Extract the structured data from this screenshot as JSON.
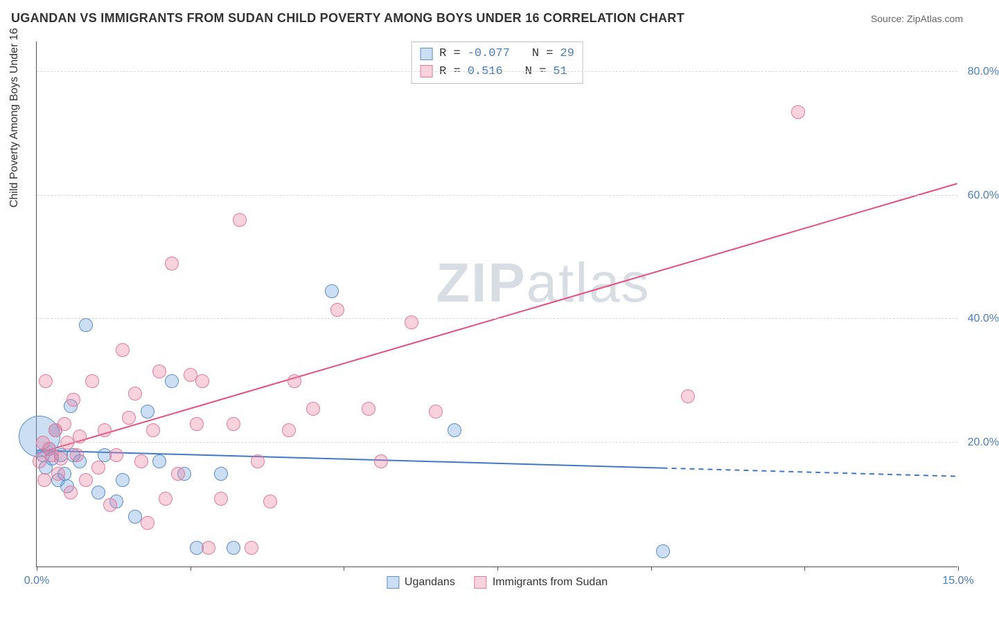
{
  "title": "UGANDAN VS IMMIGRANTS FROM SUDAN CHILD POVERTY AMONG BOYS UNDER 16 CORRELATION CHART",
  "source": "Source: ZipAtlas.com",
  "y_axis_label": "Child Poverty Among Boys Under 16",
  "watermark": {
    "bold": "ZIP",
    "light": "atlas"
  },
  "chart": {
    "type": "scatter",
    "background_color": "#ffffff",
    "grid_color": "#d9d9d9",
    "axis_color": "#555555",
    "x": {
      "min": 0,
      "max": 15,
      "ticks": [
        0,
        2.5,
        5.0,
        7.5,
        10.0,
        12.5,
        15.0
      ],
      "labels_shown": [
        "0.0%",
        "15.0%"
      ],
      "label_color": "#4a7ebb",
      "fontsize": 16
    },
    "y": {
      "min": 0,
      "max": 85,
      "ticks": [
        20,
        40,
        60,
        80
      ],
      "labels": [
        "20.0%",
        "40.0%",
        "60.0%",
        "80.0%"
      ],
      "label_color": "#4a7ebb",
      "fontsize": 16
    },
    "marker_radius_default": 10,
    "series": [
      {
        "id": "ugandans",
        "label": "Ugandans",
        "fill": "rgba(110,160,220,0.35)",
        "stroke": "#5a8fca",
        "R": -0.077,
        "N": 29,
        "trend": {
          "y_at_x0": 18.8,
          "y_at_x15": 14.6,
          "stroke": "#3f78c9",
          "width": 2,
          "solid_until_x": 10.2
        },
        "points": [
          {
            "x": 0.05,
            "y": 21,
            "r": 30
          },
          {
            "x": 0.1,
            "y": 18
          },
          {
            "x": 0.15,
            "y": 16
          },
          {
            "x": 0.2,
            "y": 19
          },
          {
            "x": 0.25,
            "y": 17.5
          },
          {
            "x": 0.3,
            "y": 22
          },
          {
            "x": 0.35,
            "y": 14
          },
          {
            "x": 0.4,
            "y": 18
          },
          {
            "x": 0.45,
            "y": 15
          },
          {
            "x": 0.5,
            "y": 13
          },
          {
            "x": 0.55,
            "y": 26
          },
          {
            "x": 0.6,
            "y": 18
          },
          {
            "x": 0.7,
            "y": 17
          },
          {
            "x": 0.8,
            "y": 39
          },
          {
            "x": 1.0,
            "y": 12
          },
          {
            "x": 1.1,
            "y": 18
          },
          {
            "x": 1.3,
            "y": 10.5
          },
          {
            "x": 1.4,
            "y": 14
          },
          {
            "x": 1.6,
            "y": 8
          },
          {
            "x": 1.8,
            "y": 25
          },
          {
            "x": 2.0,
            "y": 17
          },
          {
            "x": 2.2,
            "y": 30
          },
          {
            "x": 2.4,
            "y": 15
          },
          {
            "x": 2.6,
            "y": 3
          },
          {
            "x": 3.0,
            "y": 15
          },
          {
            "x": 3.2,
            "y": 3
          },
          {
            "x": 4.8,
            "y": 44.5
          },
          {
            "x": 6.8,
            "y": 22
          },
          {
            "x": 10.2,
            "y": 2.5
          }
        ]
      },
      {
        "id": "sudan",
        "label": "Immigrants from Sudan",
        "fill": "rgba(235,130,160,0.35)",
        "stroke": "#e47a9a",
        "R": 0.516,
        "N": 51,
        "trend": {
          "y_at_x0": 18.3,
          "y_at_x15": 62,
          "stroke": "#e74e7f",
          "width": 2,
          "solid_until_x": 15
        },
        "points": [
          {
            "x": 0.05,
            "y": 17
          },
          {
            "x": 0.1,
            "y": 20
          },
          {
            "x": 0.15,
            "y": 30
          },
          {
            "x": 0.2,
            "y": 19
          },
          {
            "x": 0.25,
            "y": 18
          },
          {
            "x": 0.3,
            "y": 22
          },
          {
            "x": 0.35,
            "y": 15
          },
          {
            "x": 0.4,
            "y": 17.5
          },
          {
            "x": 0.45,
            "y": 23
          },
          {
            "x": 0.5,
            "y": 20
          },
          {
            "x": 0.55,
            "y": 12
          },
          {
            "x": 0.6,
            "y": 27
          },
          {
            "x": 0.65,
            "y": 18
          },
          {
            "x": 0.7,
            "y": 21
          },
          {
            "x": 0.8,
            "y": 14
          },
          {
            "x": 0.9,
            "y": 30
          },
          {
            "x": 1.0,
            "y": 16
          },
          {
            "x": 1.1,
            "y": 22
          },
          {
            "x": 1.2,
            "y": 10
          },
          {
            "x": 1.3,
            "y": 18
          },
          {
            "x": 1.4,
            "y": 35
          },
          {
            "x": 1.5,
            "y": 24
          },
          {
            "x": 1.6,
            "y": 28
          },
          {
            "x": 1.7,
            "y": 17
          },
          {
            "x": 1.8,
            "y": 7
          },
          {
            "x": 1.9,
            "y": 22
          },
          {
            "x": 2.0,
            "y": 31.5
          },
          {
            "x": 2.1,
            "y": 11
          },
          {
            "x": 2.2,
            "y": 49
          },
          {
            "x": 2.3,
            "y": 15
          },
          {
            "x": 2.5,
            "y": 31
          },
          {
            "x": 2.6,
            "y": 23
          },
          {
            "x": 2.7,
            "y": 30
          },
          {
            "x": 2.8,
            "y": 3
          },
          {
            "x": 3.0,
            "y": 11
          },
          {
            "x": 3.2,
            "y": 23
          },
          {
            "x": 3.3,
            "y": 56
          },
          {
            "x": 3.5,
            "y": 3
          },
          {
            "x": 3.6,
            "y": 17
          },
          {
            "x": 3.8,
            "y": 10.5
          },
          {
            "x": 4.1,
            "y": 22
          },
          {
            "x": 4.2,
            "y": 30
          },
          {
            "x": 4.5,
            "y": 25.5
          },
          {
            "x": 4.9,
            "y": 41.5
          },
          {
            "x": 5.4,
            "y": 25.5
          },
          {
            "x": 5.6,
            "y": 17
          },
          {
            "x": 6.1,
            "y": 39.5
          },
          {
            "x": 6.5,
            "y": 25
          },
          {
            "x": 10.6,
            "y": 27.5
          },
          {
            "x": 12.4,
            "y": 73.5
          },
          {
            "x": 0.12,
            "y": 14
          }
        ]
      }
    ]
  },
  "stat_legend": {
    "border": "#bfbfbf",
    "rows": [
      {
        "swatch_fill": "rgba(110,160,220,0.35)",
        "swatch_stroke": "#5a8fca",
        "r_label": "R =",
        "r": "-0.077",
        "n_label": "N =",
        "n": "29"
      },
      {
        "swatch_fill": "rgba(235,130,160,0.35)",
        "swatch_stroke": "#e47a9a",
        "r_label": "R =",
        "r": " 0.516",
        "n_label": "N =",
        "n": "51"
      }
    ]
  },
  "series_legend": [
    {
      "swatch_fill": "rgba(110,160,220,0.35)",
      "swatch_stroke": "#5a8fca",
      "label": "Ugandans"
    },
    {
      "swatch_fill": "rgba(235,130,160,0.35)",
      "swatch_stroke": "#e47a9a",
      "label": "Immigrants from Sudan"
    }
  ]
}
